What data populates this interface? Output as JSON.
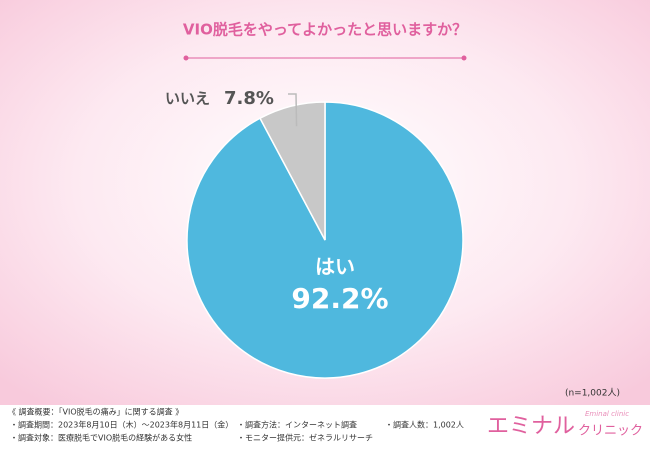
{
  "chart_data": {
    "type": "pie",
    "title": "VIO脱毛をやってよかったと思いますか？",
    "categories": [
      "はい",
      "いいえ"
    ],
    "values": [
      92.2,
      7.8
    ],
    "value_labels": [
      "92.2%",
      "7.8%"
    ],
    "colors": [
      "#4fb8de",
      "#c8c8c8"
    ],
    "sample_note": "(n=1,002人)"
  },
  "footer": {
    "heading": "《 調査概要：「VIO脱毛の痛み」に関する調査 》",
    "items": [
      "・調査期間：2023年8月10日（木）〜2023年8月11日（金）",
      "・調査対象：医療脱毛でVIO脱毛の経験がある女性",
      "・調査方法：インターネット調査",
      "・モニター提供元：ゼネラルリサーチ",
      "・調査人数：1,002人"
    ],
    "brand": "エミナル",
    "brand_sub": "クリニック",
    "brand_en": "Eminal clinic"
  }
}
